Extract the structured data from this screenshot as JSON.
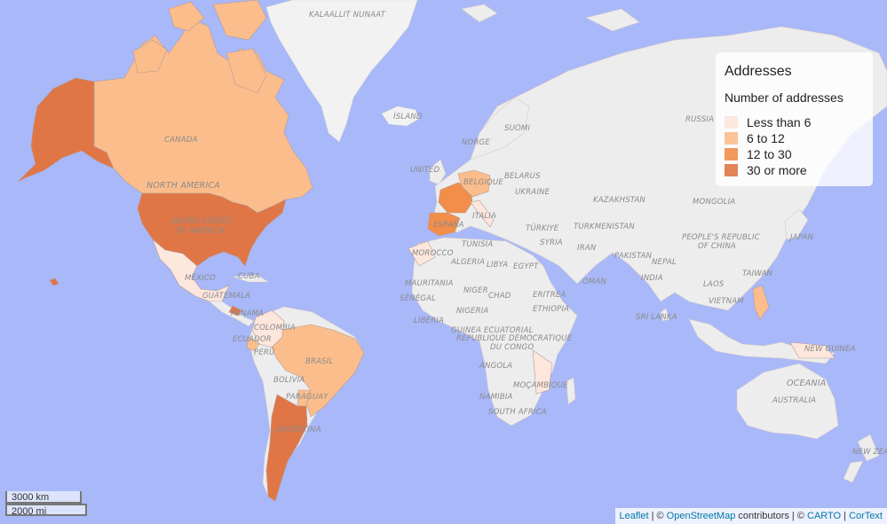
{
  "map": {
    "colors": {
      "water": "#a8b8f8",
      "land": "#ededed",
      "less_than_6": "#fde6dc",
      "6_to_12": "#fbbd8c",
      "12_to_30": "#f28e4a",
      "30_or_more": "#e07646"
    },
    "labels": {
      "kalaallit": "KALAALLIT NUNAAT",
      "island": "ÍSLAND",
      "suomi": "SUOMI",
      "norge": "NORGE",
      "russia": "RUSSIA",
      "canada": "CANADA",
      "north_america": "NORTH AMERICA",
      "usa": "UNITED STATES",
      "usa2": "OF AMERICA",
      "united": "UNITED",
      "belarus": "BELARUS",
      "ukraine": "UKRAINE",
      "belgique": "BELGIQUE",
      "kazakhstan": "KAZAKHSTAN",
      "mongolia": "MONGOLIA",
      "italia": "ITALIA",
      "espana": "ESPAÑA",
      "turkiye": "TÜRKIYE",
      "turkmenistan": "TURKMENISTAN",
      "prc": "PEOPLE'S REPUBLIC",
      "prc2": "OF CHINA",
      "japan": "JAPAN",
      "tunisia": "TUNISIA",
      "syria": "SYRIA",
      "iran": "IRAN",
      "morocco": "MOROCCO",
      "algeria": "ALGERIA",
      "libya": "LIBYA",
      "egypt": "EGYPT",
      "pakistan": "PAKISTAN",
      "nepal": "NEPAL",
      "taiwan": "TAIWAN",
      "mexico": "MÉXICO",
      "cuba": "CUBA",
      "guatemala": "GUATEMALA",
      "mauritania": "MAURITANIA",
      "niger": "NIGER",
      "chad": "CHAD",
      "eritrea": "ERITREA",
      "oman": "OMAN",
      "india": "INDIA",
      "laos": "LAOS",
      "senegal": "SÉNÉGAL",
      "nigeria": "NIGERIA",
      "ethiopia": "ETHIOPIA",
      "vietnam": "VIETNAM",
      "panama": "PANAMÁ",
      "colombia": "COLOMBIA",
      "liberia": "LIBERIA",
      "srilanka": "SRI LANKA",
      "ecuador": "ECUADOR",
      "guinea_ec": "GUINEA ECUATORIAL",
      "rdc": "RÉPUBLIQUE DÉMOCRATIQUE",
      "rdc2": "DU CONGO",
      "peru": "PERÚ",
      "brasil": "BRASIL",
      "newguinea": "NEW GUINEA",
      "angola": "ANGOLA",
      "bolivia": "BOLIVIA",
      "mozambique": "MOÇAMBIQUE",
      "namibia": "NAMIBIA",
      "oceania": "OCEANIA",
      "paraguay": "PARAGUAY",
      "australia": "AUSTRALIA",
      "south_africa": "SOUTH AFRICA",
      "argentina": "ARGENTINA",
      "new_zealand": "NEW ZEALAND"
    }
  },
  "legend": {
    "title": "Addresses",
    "subtitle": "Number of addresses",
    "items": [
      {
        "label": "Less than 6",
        "color": "#fde6dc"
      },
      {
        "label": "6 to 12",
        "color": "#fbbd8c"
      },
      {
        "label": "12 to 30",
        "color": "#f28e4a"
      },
      {
        "label": "30 or more",
        "color": "#e07646"
      }
    ]
  },
  "scale": {
    "km": "3000 km",
    "mi": "2000 mi"
  },
  "attribution": {
    "leaflet": "Leaflet",
    "sep1": " | © ",
    "osm": "OpenStreetMap",
    "contrib": " contributors | © ",
    "carto": "CARTO",
    "sep2": " | ",
    "cortext": "CorText"
  }
}
